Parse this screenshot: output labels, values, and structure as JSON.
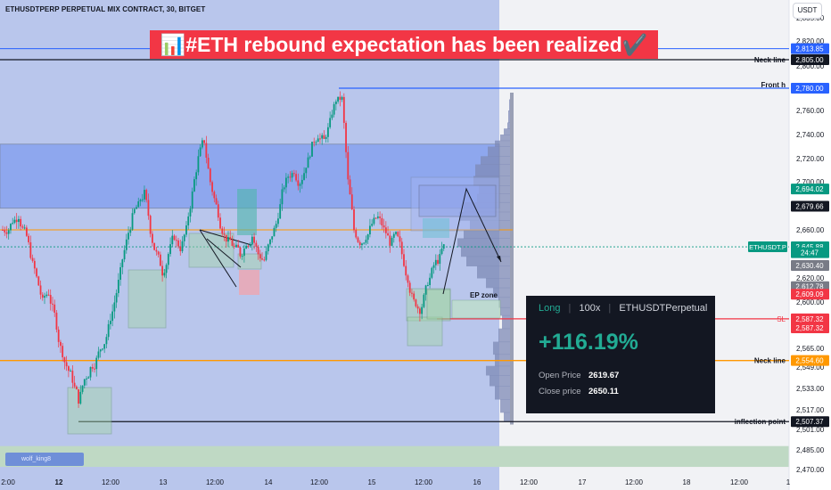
{
  "header": {
    "symbol_line": "ETHUSDTPERP PERPETUAL MIX CONTRACT, 30, BITGET",
    "currency_button": "USDT"
  },
  "banner": {
    "text": "📊#ETH rebound expectation has been realized✔️"
  },
  "annotations": {
    "neck_line_top": "Neck line",
    "front_h": "Front h",
    "ep_zone": "EP zone",
    "sl": "SL",
    "neck_line_bottom": "Neck line",
    "inflection_point": "inflection point"
  },
  "price_tags": [
    {
      "label": "2,813.85",
      "price": 2813.85,
      "color": "#2962ff"
    },
    {
      "label": "2,805.00",
      "price": 2805.0,
      "color": "#131722"
    },
    {
      "label": "2,780.00",
      "price": 2780.0,
      "color": "#2962ff"
    },
    {
      "label": "2,694.02",
      "price": 2694.02,
      "color": "#089981"
    },
    {
      "label": "2,679.66",
      "price": 2679.66,
      "color": "#131722"
    },
    {
      "label": "2,645.88",
      "price": 2645.88,
      "color": "#089981"
    },
    {
      "label": "24:47",
      "price": 2641.0,
      "color": "#089981"
    },
    {
      "label": "2,630.40",
      "price": 2630.4,
      "color": "#787b86"
    },
    {
      "label": "2,612.78",
      "price": 2612.78,
      "color": "#787b86"
    },
    {
      "label": "2,609.09",
      "price": 2606.5,
      "color": "#f23645"
    },
    {
      "label": "2,587.32",
      "price": 2587.32,
      "color": "#f23645"
    },
    {
      "label": "2,587.32",
      "price": 2580.5,
      "color": "#f23645"
    },
    {
      "label": "2,554.60",
      "price": 2554.6,
      "color": "#ff9800"
    },
    {
      "label": "2,507.37",
      "price": 2507.37,
      "color": "#131722"
    }
  ],
  "symbol_tag": "ETHUSDT.P",
  "trade_card": {
    "side": "Long",
    "leverage": "100x",
    "instrument": "ETHUSDTPerpetual",
    "pnl": "+116.19%",
    "open_label": "Open Price",
    "open_value": "2619.67",
    "close_label": "Close price",
    "close_value": "2650.11"
  },
  "watermark": "wolf_king8",
  "colors": {
    "up": "#089981",
    "down": "#f23645",
    "blue_line": "#2962ff",
    "orange_line": "#ff9800",
    "banner_bg": "#f23645"
  },
  "chart_data": {
    "type": "candlestick",
    "interval": "30",
    "y_axis_ticks": [
      2835,
      2820,
      2800,
      2760,
      2740,
      2720,
      2700,
      2660,
      2620,
      2600,
      2565,
      2549,
      2533,
      2517,
      2501,
      2485,
      2470
    ],
    "y_axis_labels": [
      "2,835.00",
      "2,820.00",
      "2,800.00",
      "2,760.00",
      "2,740.00",
      "2,720.00",
      "2,700.00",
      "2,660.00",
      "2,620.00",
      "2,600.00",
      "2,565.00",
      "2,549.00",
      "2,533.00",
      "2,517.00",
      "2,501.00",
      "2,485.00",
      "2,470.00"
    ],
    "x_axis_labels": [
      "2:00",
      "12",
      "12:00",
      "13",
      "12:00",
      "14",
      "12:00",
      "15",
      "12:00",
      "16",
      "12:00",
      "17",
      "12:00",
      "18",
      "12:00",
      "1"
    ],
    "horizontal_levels": [
      {
        "name": "Neck line",
        "price": 2805.0,
        "color": "#131722"
      },
      {
        "name": "Front h",
        "price": 2780.0,
        "color": "#2962ff"
      },
      {
        "name": "SL",
        "price": 2587.32,
        "color": "#f23645"
      },
      {
        "name": "Neck line",
        "price": 2554.6,
        "color": "#ff9800"
      },
      {
        "name": "inflection point",
        "price": 2507.37,
        "color": "#131722"
      }
    ],
    "zones": [
      {
        "from": 2732,
        "to": 2678,
        "color": "#2962ff"
      },
      {
        "from": 2488,
        "to": 2472,
        "color": "#a5d6a7"
      }
    ],
    "closes": [
      2660,
      2668,
      2672,
      2658,
      2640,
      2620,
      2600,
      2608,
      2590,
      2565,
      2550,
      2540,
      2525,
      2540,
      2548,
      2555,
      2568,
      2580,
      2600,
      2625,
      2650,
      2670,
      2680,
      2690,
      2660,
      2640,
      2625,
      2640,
      2655,
      2645,
      2660,
      2690,
      2720,
      2735,
      2700,
      2680,
      2660,
      2650,
      2645,
      2640,
      2650,
      2655,
      2640,
      2635,
      2650,
      2665,
      2690,
      2705,
      2710,
      2700,
      2715,
      2730,
      2740,
      2735,
      2750,
      2770,
      2770,
      2700,
      2660,
      2650,
      2655,
      2665,
      2670,
      2660,
      2650,
      2655,
      2640,
      2620,
      2600,
      2595,
      2610,
      2625,
      2635,
      2646
    ]
  }
}
